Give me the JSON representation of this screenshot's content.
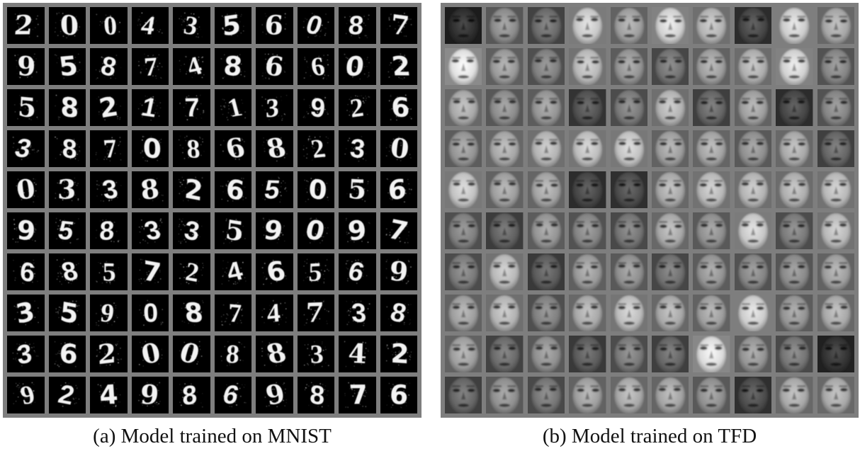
{
  "figure": {
    "panel_a": {
      "caption": "(a)  Model trained on MNIST",
      "grid_rows": 10,
      "grid_cols": 10,
      "samples": [
        [
          "2",
          "0",
          "0",
          "4",
          "3",
          "5",
          "6",
          "0",
          "8",
          "7"
        ],
        [
          "9",
          "5",
          "8",
          "7",
          "4",
          "8",
          "6",
          "6",
          "0",
          "2"
        ],
        [
          "5",
          "8",
          "2",
          "1",
          "7",
          "1",
          "3",
          "9",
          "2",
          "6"
        ],
        [
          "3",
          "8",
          "7",
          "0",
          "8",
          "6",
          "8",
          "2",
          "3",
          "0"
        ],
        [
          "0",
          "3",
          "3",
          "8",
          "2",
          "6",
          "5",
          "0",
          "5",
          "6"
        ],
        [
          "9",
          "5",
          "8",
          "3",
          "3",
          "5",
          "9",
          "0",
          "9",
          "7"
        ],
        [
          "6",
          "8",
          "5",
          "7",
          "2",
          "4",
          "6",
          "5",
          "6",
          "9"
        ],
        [
          "3",
          "5",
          "9",
          "0",
          "8",
          "7",
          "4",
          "7",
          "3",
          "8"
        ],
        [
          "3",
          "6",
          "2",
          "0",
          "0",
          "8",
          "8",
          "3",
          "4",
          "2"
        ],
        [
          "9",
          "2",
          "4",
          "9",
          "8",
          "6",
          "9",
          "8",
          "7",
          "6"
        ]
      ]
    },
    "panel_b": {
      "caption": "(b)  Model trained on TFD",
      "grid_rows": 10,
      "grid_cols": 10,
      "face_brightness": [
        [
          0.18,
          0.55,
          0.42,
          0.78,
          0.62,
          0.82,
          0.7,
          0.28,
          0.8,
          0.65
        ],
        [
          0.88,
          0.6,
          0.5,
          0.72,
          0.58,
          0.45,
          0.62,
          0.68,
          0.82,
          0.52
        ],
        [
          0.66,
          0.55,
          0.58,
          0.32,
          0.48,
          0.7,
          0.4,
          0.62,
          0.28,
          0.52
        ],
        [
          0.58,
          0.65,
          0.7,
          0.74,
          0.76,
          0.62,
          0.64,
          0.56,
          0.66,
          0.4
        ],
        [
          0.76,
          0.62,
          0.64,
          0.28,
          0.3,
          0.66,
          0.72,
          0.7,
          0.68,
          0.72
        ],
        [
          0.5,
          0.38,
          0.58,
          0.52,
          0.46,
          0.66,
          0.56,
          0.78,
          0.48,
          0.72
        ],
        [
          0.48,
          0.72,
          0.36,
          0.6,
          0.56,
          0.44,
          0.58,
          0.52,
          0.54,
          0.62
        ],
        [
          0.62,
          0.7,
          0.5,
          0.66,
          0.74,
          0.66,
          0.62,
          0.8,
          0.58,
          0.66
        ],
        [
          0.62,
          0.42,
          0.56,
          0.36,
          0.48,
          0.4,
          0.86,
          0.58,
          0.46,
          0.2
        ],
        [
          0.4,
          0.56,
          0.46,
          0.62,
          0.66,
          0.64,
          0.56,
          0.3,
          0.66,
          0.66
        ]
      ]
    }
  }
}
